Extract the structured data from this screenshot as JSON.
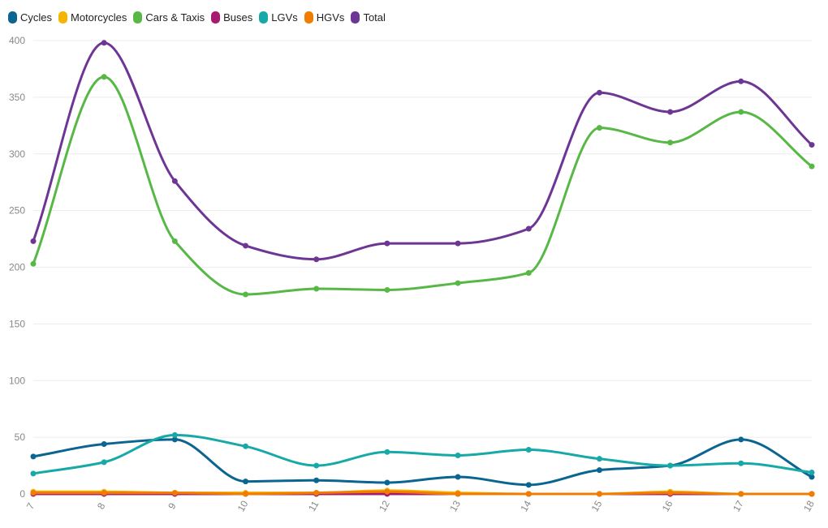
{
  "chart_data": {
    "type": "line",
    "x": [
      "7",
      "8",
      "9",
      "10",
      "11",
      "12",
      "13",
      "14",
      "15",
      "16",
      "17",
      "18"
    ],
    "ylim": [
      0,
      400
    ],
    "yticks": [
      0,
      50,
      100,
      150,
      200,
      250,
      300,
      350,
      400
    ],
    "grid": true,
    "legend_position": "top-left",
    "series": [
      {
        "name": "Cycles",
        "color": "#0b6591",
        "values": [
          33,
          44,
          48,
          11,
          12,
          10,
          15,
          8,
          21,
          25,
          48,
          15
        ]
      },
      {
        "name": "Motorcycles",
        "color": "#f5b400",
        "values": [
          2,
          2,
          1,
          1,
          1,
          3,
          1,
          0,
          0,
          2,
          0,
          0
        ]
      },
      {
        "name": "Cars & Taxis",
        "color": "#57b846",
        "values": [
          203,
          368,
          223,
          176,
          181,
          180,
          186,
          195,
          323,
          310,
          337,
          289
        ]
      },
      {
        "name": "Buses",
        "color": "#a81971",
        "values": [
          0,
          0,
          0,
          0,
          0,
          0,
          0,
          0,
          0,
          0,
          0,
          0
        ]
      },
      {
        "name": "LGVs",
        "color": "#17a9a8",
        "values": [
          18,
          28,
          52,
          42,
          25,
          37,
          34,
          39,
          31,
          25,
          27,
          19
        ]
      },
      {
        "name": "HGVs",
        "color": "#f07d00",
        "values": [
          1,
          1,
          1,
          0,
          1,
          2,
          0,
          0,
          0,
          1,
          0,
          0
        ]
      },
      {
        "name": "Total",
        "color": "#6e3694",
        "values": [
          223,
          398,
          276,
          219,
          207,
          221,
          221,
          234,
          354,
          337,
          364,
          308
        ]
      }
    ]
  }
}
